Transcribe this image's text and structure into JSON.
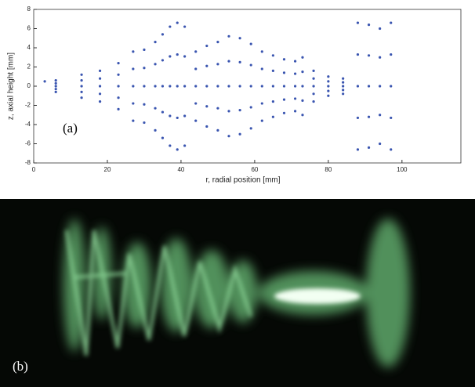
{
  "chart_data": {
    "type": "scatter",
    "x_label": "r, radial position [mm]",
    "y_label": "z, axial height [mm]",
    "panel_label": "(a)",
    "color": "#3a55b0",
    "xlim": [
      0,
      116
    ],
    "ylim": [
      -8,
      8
    ],
    "xticks": [
      0,
      20,
      40,
      60,
      80,
      100
    ],
    "yticks": [
      -8,
      -6,
      -4,
      -2,
      0,
      2,
      4,
      6,
      8
    ],
    "x": [
      3,
      6,
      6,
      6,
      6,
      6,
      13,
      13,
      13,
      13,
      13,
      18,
      18,
      18,
      18,
      18,
      23,
      23,
      23,
      23,
      23,
      27,
      27,
      27,
      27,
      27,
      30,
      30,
      30,
      30,
      30,
      33,
      33,
      33,
      33,
      33,
      35,
      35,
      35,
      35,
      35,
      37,
      37,
      37,
      37,
      37,
      39,
      39,
      39,
      39,
      39,
      41,
      41,
      41,
      41,
      41,
      44,
      44,
      44,
      44,
      44,
      47,
      47,
      47,
      47,
      47,
      50,
      50,
      50,
      50,
      50,
      53,
      53,
      53,
      53,
      53,
      56,
      56,
      56,
      56,
      56,
      59,
      59,
      59,
      59,
      59,
      62,
      62,
      62,
      62,
      62,
      65,
      65,
      65,
      65,
      65,
      68,
      68,
      68,
      68,
      68,
      71,
      71,
      71,
      71,
      71,
      73,
      73,
      73,
      73,
      73,
      76,
      76,
      76,
      76,
      76,
      80,
      80,
      80,
      80,
      80,
      84,
      84,
      84,
      84,
      84,
      88,
      88,
      88,
      88,
      88,
      91,
      91,
      91,
      91,
      91,
      94,
      94,
      94,
      94,
      94,
      97,
      97,
      97,
      97,
      97
    ],
    "y": [
      0.5,
      -0.6,
      -0.3,
      0,
      0.3,
      0.6,
      -1.2,
      -0.6,
      0,
      0.6,
      1.2,
      -1.6,
      -0.8,
      0,
      0.8,
      1.6,
      -2.4,
      -1.2,
      0,
      1.2,
      2.4,
      -3.6,
      -1.8,
      0,
      1.8,
      3.6,
      -3.8,
      -1.9,
      0,
      1.9,
      3.8,
      -4.6,
      -2.3,
      0,
      2.3,
      4.6,
      -5.4,
      -2.7,
      0,
      2.7,
      5.4,
      -6.2,
      -3.1,
      0,
      3.1,
      6.2,
      -6.6,
      -3.3,
      0,
      3.3,
      6.6,
      -6.2,
      -3.1,
      0,
      3.1,
      6.2,
      -3.6,
      -1.8,
      0,
      1.8,
      3.6,
      -4.2,
      -2.1,
      0,
      2.1,
      4.2,
      -4.6,
      -2.3,
      0,
      2.3,
      4.6,
      -5.2,
      -2.6,
      0,
      2.6,
      5.2,
      -5,
      -2.5,
      0,
      2.5,
      5,
      -4.4,
      -2.2,
      0,
      2.2,
      4.4,
      -3.6,
      -1.8,
      0,
      1.8,
      3.6,
      -3.2,
      -1.6,
      0,
      1.6,
      3.2,
      -2.8,
      -1.4,
      0,
      1.4,
      2.8,
      -2.6,
      -1.3,
      0,
      1.3,
      2.6,
      -3,
      -1.5,
      0,
      1.5,
      3,
      -1.6,
      -0.8,
      0,
      0.8,
      1.6,
      -1,
      -0.5,
      0,
      0.5,
      1,
      -0.8,
      -0.4,
      0,
      0.4,
      0.8,
      -6.6,
      -3.3,
      0,
      3.3,
      6.6,
      -6.4,
      -3.2,
      0,
      3.2,
      6.4,
      -6,
      -3,
      0,
      3,
      6,
      -6.6,
      -3.3,
      0,
      3.3,
      6.6
    ]
  },
  "photo": {
    "panel_label": "(b)"
  }
}
